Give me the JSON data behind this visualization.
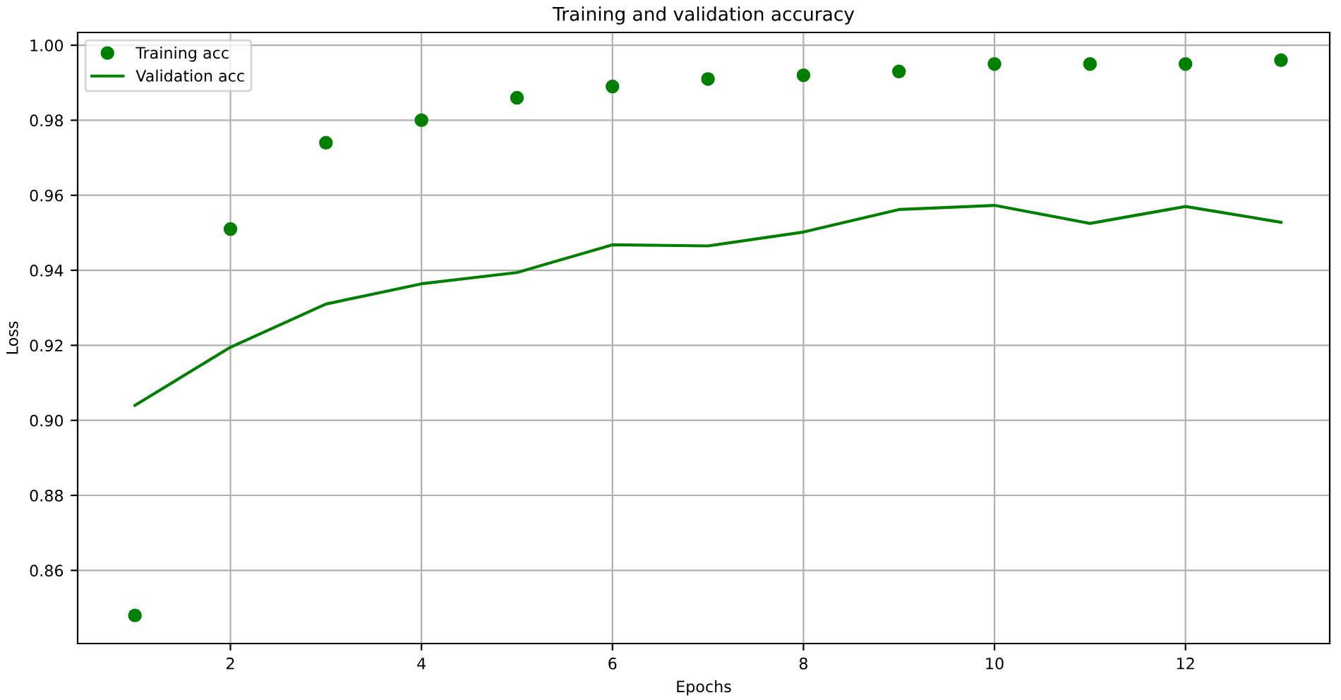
{
  "chart_data": {
    "type": "line",
    "title": "Training and validation accuracy",
    "xlabel": "Epochs",
    "ylabel": "Loss",
    "x": [
      1,
      2,
      3,
      4,
      5,
      6,
      7,
      8,
      9,
      10,
      11,
      12,
      13
    ],
    "series": [
      {
        "name": "Training acc",
        "type": "scatter",
        "color": "#008000",
        "marker": "circle",
        "values": [
          0.848,
          0.951,
          0.974,
          0.98,
          0.986,
          0.989,
          0.991,
          0.992,
          0.993,
          0.995,
          0.995,
          0.995,
          0.996
        ]
      },
      {
        "name": "Validation acc",
        "color": "#008000",
        "line_style": "solid",
        "values": [
          0.904,
          0.9195,
          0.931,
          0.9364,
          0.9394,
          0.9468,
          0.9465,
          0.9502,
          0.9562,
          0.9573,
          0.9525,
          0.957,
          0.9528
        ]
      }
    ],
    "xlim": [
      0.4,
      13.51
    ],
    "ylim": [
      0.8405,
      1.0034
    ],
    "xticks": [
      2,
      4,
      6,
      8,
      10,
      12
    ],
    "yticks": [
      {
        "value": 0.86,
        "label": "0.86"
      },
      {
        "value": 0.88,
        "label": "0.88"
      },
      {
        "value": 0.9,
        "label": "0.90"
      },
      {
        "value": 0.92,
        "label": "0.92"
      },
      {
        "value": 0.94,
        "label": "0.94"
      },
      {
        "value": 0.96,
        "label": "0.96"
      },
      {
        "value": 0.98,
        "label": "0.98"
      },
      {
        "value": 1.0,
        "label": "1.00"
      }
    ],
    "grid": true,
    "legend": "top left"
  }
}
